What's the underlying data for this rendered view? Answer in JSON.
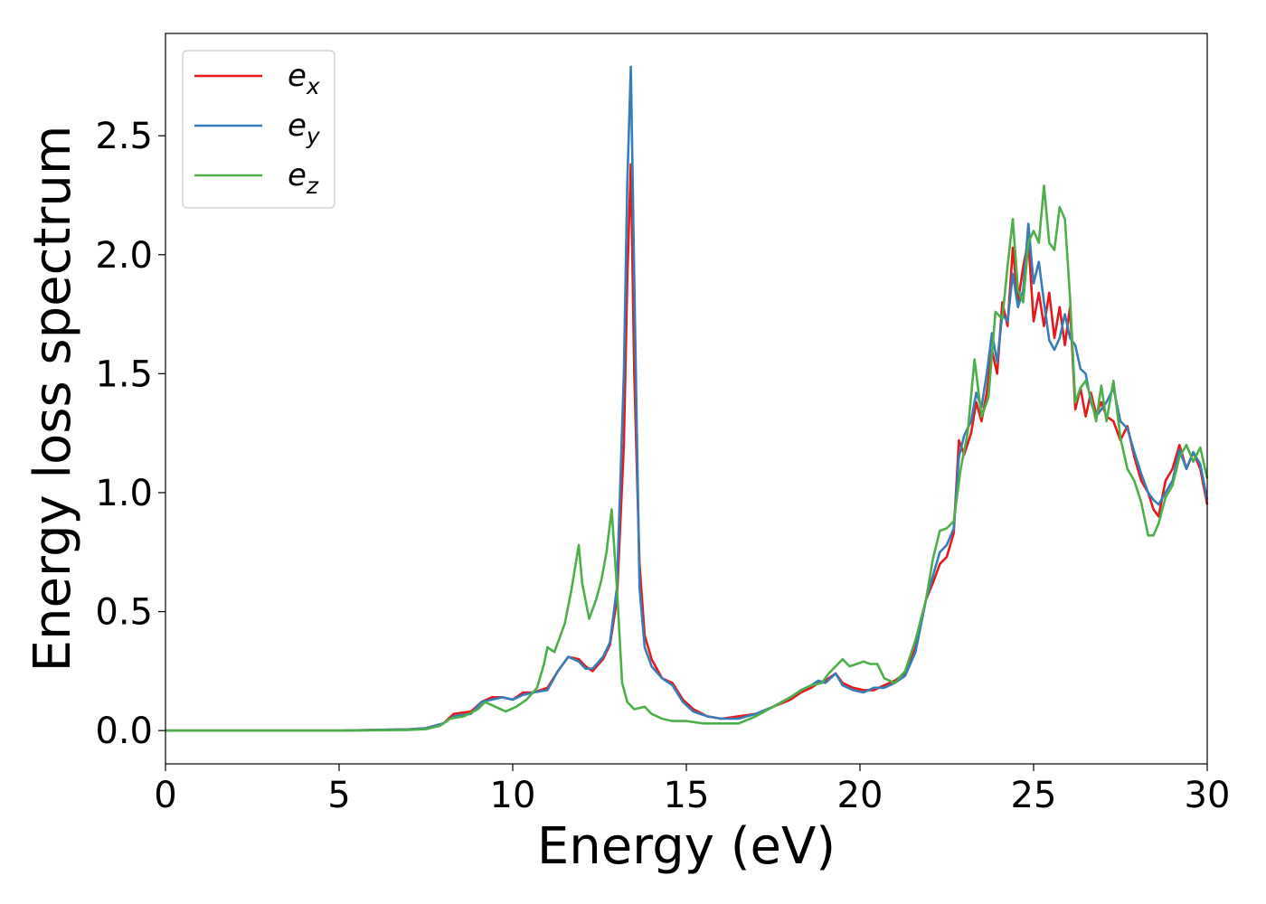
{
  "chart_data": {
    "type": "line",
    "title": "",
    "xlabel": "Energy (eV)",
    "ylabel": "Energy loss spectrum",
    "xlim": [
      0,
      30
    ],
    "ylim": [
      -0.14,
      2.93
    ],
    "xticks": [
      0,
      5,
      10,
      15,
      20,
      25,
      30
    ],
    "xtick_labels": [
      "0",
      "5",
      "10",
      "15",
      "20",
      "25",
      "30"
    ],
    "yticks": [
      0.0,
      0.5,
      1.0,
      1.5,
      2.0,
      2.5
    ],
    "ytick_labels": [
      "0.0",
      "0.5",
      "1.0",
      "1.5",
      "2.0",
      "2.5"
    ],
    "grid": false,
    "legend_position": "top-left",
    "series": [
      {
        "name": "e_x",
        "label_base": "e",
        "label_sub": "x",
        "color": "#e41a1c",
        "x": [
          0,
          5,
          7,
          7.5,
          8,
          8.3,
          8.8,
          9.1,
          9.4,
          9.7,
          10.0,
          10.3,
          10.6,
          11.0,
          11.3,
          11.6,
          11.9,
          12.1,
          12.3,
          12.6,
          12.8,
          13.0,
          13.2,
          13.3,
          13.4,
          13.5,
          13.65,
          13.8,
          14.0,
          14.3,
          14.6,
          14.9,
          15.2,
          15.6,
          16.0,
          16.5,
          17.0,
          17.5,
          18.0,
          18.3,
          18.6,
          18.8,
          19.0,
          19.3,
          19.5,
          19.8,
          20.1,
          20.4,
          20.7,
          21.0,
          21.3,
          21.6,
          21.9,
          22.1,
          22.3,
          22.5,
          22.7,
          22.85,
          23.0,
          23.2,
          23.35,
          23.5,
          23.65,
          23.8,
          23.95,
          24.1,
          24.25,
          24.4,
          24.55,
          24.7,
          24.85,
          25.0,
          25.15,
          25.3,
          25.45,
          25.6,
          25.75,
          25.9,
          26.05,
          26.2,
          26.35,
          26.5,
          26.65,
          26.8,
          26.95,
          27.1,
          27.3,
          27.5,
          27.7,
          27.9,
          28.1,
          28.3,
          28.45,
          28.6,
          28.8,
          29.0,
          29.2,
          29.4,
          29.6,
          29.8,
          30.0
        ],
        "y": [
          0,
          0,
          0.005,
          0.01,
          0.03,
          0.07,
          0.08,
          0.12,
          0.14,
          0.14,
          0.13,
          0.16,
          0.16,
          0.18,
          0.25,
          0.31,
          0.3,
          0.27,
          0.25,
          0.3,
          0.36,
          0.55,
          1.2,
          1.9,
          2.38,
          1.5,
          0.7,
          0.4,
          0.3,
          0.22,
          0.2,
          0.13,
          0.09,
          0.06,
          0.05,
          0.06,
          0.07,
          0.1,
          0.13,
          0.16,
          0.18,
          0.2,
          0.21,
          0.24,
          0.2,
          0.18,
          0.17,
          0.17,
          0.19,
          0.21,
          0.24,
          0.35,
          0.55,
          0.62,
          0.7,
          0.73,
          0.83,
          1.22,
          1.16,
          1.25,
          1.38,
          1.3,
          1.42,
          1.6,
          1.5,
          1.8,
          1.7,
          2.03,
          1.8,
          1.95,
          2.06,
          1.72,
          1.84,
          1.7,
          1.84,
          1.65,
          1.78,
          1.62,
          1.78,
          1.35,
          1.44,
          1.32,
          1.42,
          1.33,
          1.38,
          1.32,
          1.3,
          1.22,
          1.28,
          1.15,
          1.05,
          1.0,
          0.93,
          0.9,
          1.05,
          1.1,
          1.2,
          1.1,
          1.17,
          1.1,
          0.95
        ]
      },
      {
        "name": "e_y",
        "label_base": "e",
        "label_sub": "y",
        "color": "#377eb8",
        "x": [
          0,
          5,
          7,
          7.5,
          8,
          8.3,
          8.8,
          9.1,
          9.4,
          9.7,
          10.0,
          10.3,
          10.6,
          11.0,
          11.3,
          11.6,
          11.9,
          12.1,
          12.3,
          12.6,
          12.8,
          13.0,
          13.2,
          13.3,
          13.4,
          13.5,
          13.65,
          13.8,
          14.0,
          14.3,
          14.6,
          14.9,
          15.2,
          15.6,
          16.0,
          16.5,
          17.0,
          17.5,
          18.0,
          18.3,
          18.6,
          18.8,
          19.0,
          19.3,
          19.5,
          19.8,
          20.1,
          20.4,
          20.7,
          21.0,
          21.3,
          21.6,
          21.9,
          22.1,
          22.3,
          22.5,
          22.7,
          22.85,
          23.0,
          23.2,
          23.35,
          23.5,
          23.65,
          23.8,
          23.95,
          24.1,
          24.25,
          24.4,
          24.55,
          24.7,
          24.85,
          25.0,
          25.15,
          25.3,
          25.45,
          25.6,
          25.75,
          25.9,
          26.05,
          26.2,
          26.35,
          26.5,
          26.65,
          26.8,
          26.95,
          27.1,
          27.3,
          27.5,
          27.7,
          27.9,
          28.1,
          28.3,
          28.45,
          28.6,
          28.8,
          29.0,
          29.2,
          29.4,
          29.6,
          29.8,
          30.0
        ],
        "y": [
          0,
          0,
          0.005,
          0.01,
          0.03,
          0.06,
          0.07,
          0.12,
          0.13,
          0.14,
          0.13,
          0.15,
          0.16,
          0.17,
          0.25,
          0.31,
          0.29,
          0.26,
          0.26,
          0.31,
          0.37,
          0.6,
          1.5,
          2.3,
          2.79,
          1.9,
          0.6,
          0.35,
          0.27,
          0.22,
          0.19,
          0.12,
          0.08,
          0.06,
          0.05,
          0.05,
          0.07,
          0.1,
          0.14,
          0.17,
          0.19,
          0.21,
          0.2,
          0.24,
          0.19,
          0.17,
          0.16,
          0.18,
          0.18,
          0.2,
          0.23,
          0.33,
          0.55,
          0.65,
          0.75,
          0.78,
          0.85,
          1.15,
          1.24,
          1.3,
          1.42,
          1.36,
          1.5,
          1.67,
          1.55,
          1.75,
          1.72,
          1.92,
          1.78,
          1.85,
          2.13,
          1.88,
          1.97,
          1.8,
          1.64,
          1.6,
          1.65,
          1.75,
          1.65,
          1.62,
          1.52,
          1.5,
          1.38,
          1.32,
          1.35,
          1.38,
          1.44,
          1.3,
          1.27,
          1.17,
          1.08,
          1.0,
          0.97,
          0.95,
          1.0,
          1.05,
          1.18,
          1.1,
          1.17,
          1.12,
          0.97
        ]
      },
      {
        "name": "e_z",
        "label_base": "e",
        "label_sub": "z",
        "color": "#4daf4a",
        "x": [
          0,
          5,
          7,
          7.5,
          7.9,
          8.2,
          8.6,
          9.0,
          9.2,
          9.5,
          9.8,
          10.1,
          10.4,
          10.7,
          10.9,
          11.0,
          11.2,
          11.5,
          11.7,
          11.9,
          12.0,
          12.2,
          12.4,
          12.55,
          12.7,
          12.85,
          13.0,
          13.15,
          13.3,
          13.5,
          13.8,
          14.0,
          14.3,
          14.6,
          15.0,
          15.5,
          16.0,
          16.5,
          17.0,
          17.5,
          18.0,
          18.3,
          18.6,
          18.9,
          19.1,
          19.3,
          19.5,
          19.7,
          19.9,
          20.1,
          20.3,
          20.5,
          20.7,
          21.0,
          21.3,
          21.6,
          21.9,
          22.1,
          22.3,
          22.5,
          22.7,
          22.9,
          23.1,
          23.3,
          23.5,
          23.7,
          23.9,
          24.1,
          24.25,
          24.4,
          24.55,
          24.7,
          24.85,
          25.0,
          25.15,
          25.3,
          25.45,
          25.6,
          25.75,
          25.9,
          26.05,
          26.2,
          26.35,
          26.5,
          26.65,
          26.8,
          26.95,
          27.1,
          27.3,
          27.5,
          27.7,
          27.9,
          28.1,
          28.3,
          28.45,
          28.6,
          28.8,
          29.0,
          29.2,
          29.4,
          29.6,
          29.8,
          30.0
        ],
        "y": [
          0,
          0,
          0.003,
          0.006,
          0.02,
          0.05,
          0.06,
          0.09,
          0.12,
          0.1,
          0.08,
          0.1,
          0.13,
          0.18,
          0.28,
          0.35,
          0.33,
          0.45,
          0.6,
          0.78,
          0.62,
          0.47,
          0.55,
          0.63,
          0.75,
          0.93,
          0.6,
          0.2,
          0.12,
          0.09,
          0.1,
          0.07,
          0.05,
          0.04,
          0.04,
          0.03,
          0.03,
          0.03,
          0.06,
          0.1,
          0.14,
          0.17,
          0.19,
          0.2,
          0.24,
          0.27,
          0.3,
          0.27,
          0.28,
          0.29,
          0.28,
          0.28,
          0.22,
          0.2,
          0.25,
          0.38,
          0.55,
          0.72,
          0.84,
          0.85,
          0.88,
          1.1,
          1.25,
          1.56,
          1.32,
          1.4,
          1.76,
          1.73,
          1.95,
          2.15,
          1.85,
          1.8,
          2.05,
          2.1,
          2.05,
          2.29,
          2.05,
          2.02,
          2.2,
          2.15,
          1.82,
          1.38,
          1.44,
          1.47,
          1.4,
          1.3,
          1.45,
          1.3,
          1.47,
          1.23,
          1.1,
          1.05,
          0.96,
          0.82,
          0.82,
          0.87,
          0.98,
          1.03,
          1.15,
          1.2,
          1.13,
          1.19,
          1.06
        ]
      }
    ]
  }
}
